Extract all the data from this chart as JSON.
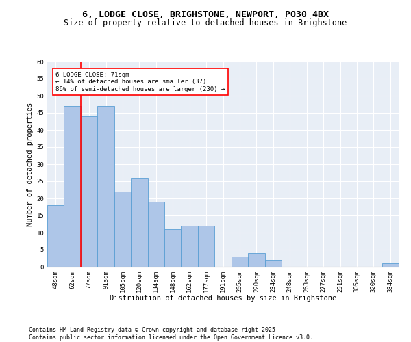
{
  "title_line1": "6, LODGE CLOSE, BRIGHSTONE, NEWPORT, PO30 4BX",
  "title_line2": "Size of property relative to detached houses in Brighstone",
  "xlabel": "Distribution of detached houses by size in Brighstone",
  "ylabel": "Number of detached properties",
  "categories": [
    "48sqm",
    "62sqm",
    "77sqm",
    "91sqm",
    "105sqm",
    "120sqm",
    "134sqm",
    "148sqm",
    "162sqm",
    "177sqm",
    "191sqm",
    "205sqm",
    "220sqm",
    "234sqm",
    "248sqm",
    "263sqm",
    "277sqm",
    "291sqm",
    "305sqm",
    "320sqm",
    "334sqm"
  ],
  "values": [
    18,
    47,
    44,
    47,
    22,
    26,
    19,
    11,
    12,
    12,
    0,
    3,
    4,
    2,
    0,
    0,
    0,
    0,
    0,
    0,
    1
  ],
  "bar_color": "#aec6e8",
  "bar_edge_color": "#5a9fd4",
  "vline_color": "red",
  "annotation_text": "6 LODGE CLOSE: 71sqm\n← 14% of detached houses are smaller (37)\n86% of semi-detached houses are larger (230) →",
  "annotation_box_color": "white",
  "annotation_box_edge_color": "red",
  "ylim": [
    0,
    60
  ],
  "yticks": [
    0,
    5,
    10,
    15,
    20,
    25,
    30,
    35,
    40,
    45,
    50,
    55,
    60
  ],
  "background_color": "#e8eef6",
  "footer_text": "Contains HM Land Registry data © Crown copyright and database right 2025.\nContains public sector information licensed under the Open Government Licence v3.0.",
  "title_fontsize": 9.5,
  "subtitle_fontsize": 8.5,
  "axis_label_fontsize": 7.5,
  "tick_fontsize": 6.5,
  "annotation_fontsize": 6.5,
  "footer_fontsize": 6.0
}
